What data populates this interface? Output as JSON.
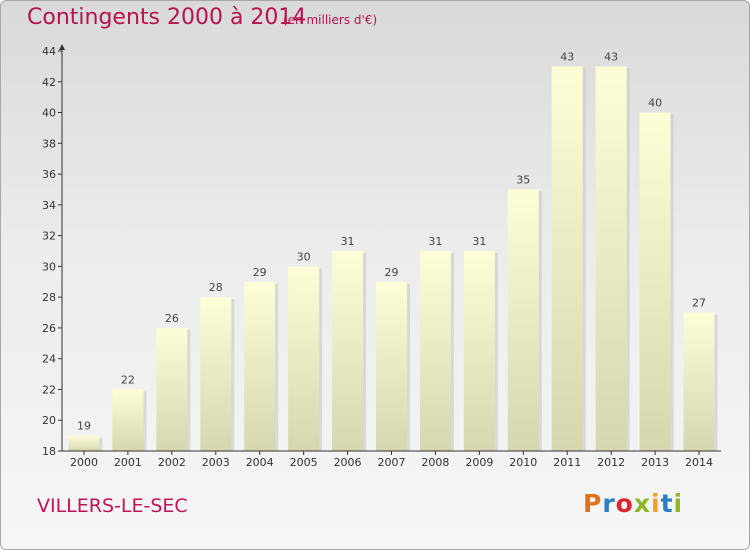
{
  "header": {
    "title": "Contingents 2000 à 2014",
    "subtitle": "(en milliers d'€)"
  },
  "footer": {
    "commune": "VILLERS-LE-SEC",
    "logo_text": "Proxiti",
    "logo_colors": [
      "#e0731a",
      "#2a7fc4",
      "#d8262f",
      "#8cb828",
      "#f0a020",
      "#2a7fc4",
      "#8cb828"
    ]
  },
  "colors": {
    "title": "#b5124f",
    "bar_top": "#fdfdd8",
    "bar_bottom": "#d6d6b0",
    "axis": "#333333"
  },
  "chart_data": {
    "type": "bar",
    "title": "Contingents 2000 à 2014",
    "subtitle": "(en milliers d'€)",
    "xlabel": "",
    "ylabel": "",
    "categories": [
      "2000",
      "2001",
      "2002",
      "2003",
      "2004",
      "2005",
      "2006",
      "2007",
      "2008",
      "2009",
      "2010",
      "2011",
      "2012",
      "2013",
      "2014"
    ],
    "values": [
      19,
      22,
      26,
      28,
      29,
      30,
      31,
      29,
      31,
      31,
      35,
      43,
      43,
      40,
      27
    ],
    "ylim": [
      18,
      44
    ],
    "yticks": [
      18,
      20,
      22,
      24,
      26,
      28,
      30,
      32,
      34,
      36,
      38,
      40,
      42,
      44
    ],
    "grid": false,
    "legend": "none"
  }
}
